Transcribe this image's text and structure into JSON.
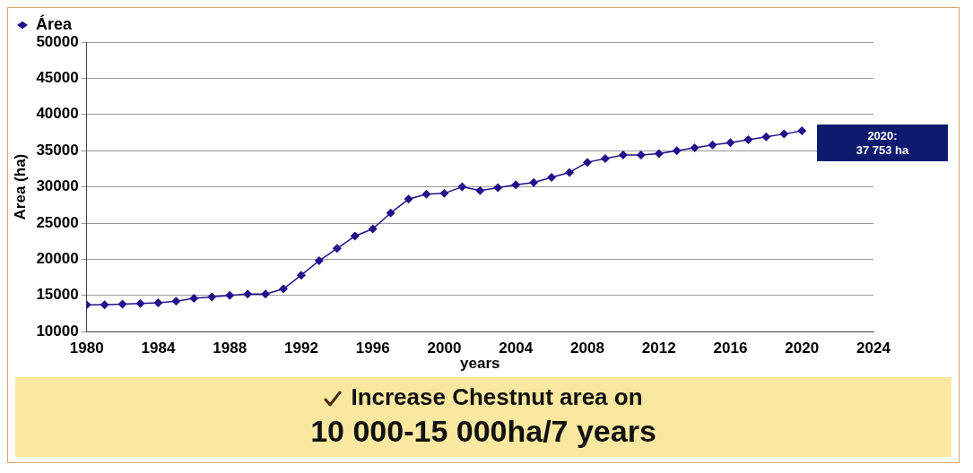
{
  "chart_data": {
    "type": "line",
    "xlabel": "years",
    "ylabel": "Area (ha)",
    "x": [
      1980,
      1981,
      1982,
      1983,
      1984,
      1985,
      1986,
      1987,
      1988,
      1989,
      1990,
      1991,
      1992,
      1993,
      1994,
      1995,
      1996,
      1997,
      1998,
      1999,
      2000,
      2001,
      2002,
      2003,
      2004,
      2005,
      2006,
      2007,
      2008,
      2009,
      2010,
      2011,
      2012,
      2013,
      2014,
      2015,
      2016,
      2017,
      2018,
      2019,
      2020
    ],
    "series": [
      {
        "name": "Área",
        "color": "#24108a",
        "values": [
          13700,
          13700,
          13800,
          13900,
          14000,
          14200,
          14600,
          14800,
          15000,
          15200,
          15200,
          15900,
          17800,
          19800,
          21500,
          23200,
          24200,
          26400,
          28300,
          29000,
          29100,
          30000,
          29500,
          29900,
          30300,
          30600,
          31300,
          32000,
          33400,
          33900,
          34400,
          34400,
          34600,
          35000,
          35400,
          35800,
          36100,
          36500,
          36900,
          37300,
          37753
        ]
      }
    ],
    "xlim": [
      1980,
      2024
    ],
    "xticks": [
      1980,
      1984,
      1988,
      1992,
      1996,
      2000,
      2004,
      2008,
      2012,
      2016,
      2020,
      2024
    ],
    "ylim": [
      10000,
      50000
    ],
    "yticks": [
      10000,
      15000,
      20000,
      25000,
      30000,
      35000,
      40000,
      45000,
      50000
    ],
    "grid": "y",
    "legend": "top left",
    "marker": "diamond",
    "line_style": "solid",
    "annotations": [
      "2020:\n37 753 ha",
      "Increase Chestnut area on",
      "10 000-15 000ha/7 years"
    ]
  }
}
